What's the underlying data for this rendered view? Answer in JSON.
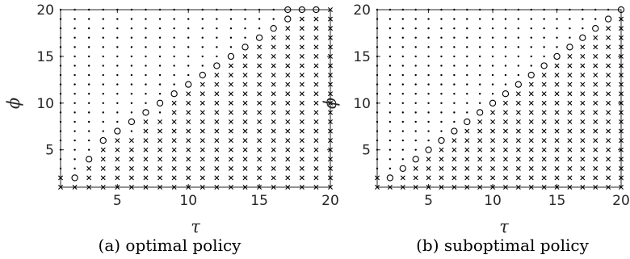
{
  "chart_data": [
    {
      "type": "scatter",
      "panel": "left",
      "caption": "(a) optimal policy",
      "xlabel": "τ",
      "ylabel": "ϕ",
      "xlim": [
        1,
        20
      ],
      "ylim": [
        1,
        20
      ],
      "xticks": [
        5,
        10,
        15,
        20
      ],
      "yticks": [
        5,
        10,
        15,
        20
      ],
      "grid": false,
      "marker_legend": {
        "dot": "•",
        "cross": "×",
        "circle": "○"
      },
      "rule": "for each column τ (1..20) and row ϕ (1..20): ϕ <= cross_upto[τ-1] → ×, ϕ in circles[τ-1] → ○, otherwise •",
      "cross_upto": [
        2,
        1,
        3,
        5,
        6,
        6,
        8,
        8,
        10,
        11,
        12,
        13,
        14,
        15,
        16,
        17,
        18,
        19,
        19,
        20
      ],
      "circles": [
        [],
        [
          2
        ],
        [
          4
        ],
        [
          6
        ],
        [
          5,
          7
        ],
        [
          8
        ],
        [
          9
        ],
        [
          10
        ],
        [
          11
        ],
        [
          12
        ],
        [
          13
        ],
        [
          14
        ],
        [
          15
        ],
        [
          16
        ],
        [
          17
        ],
        [
          18
        ],
        [
          19,
          20
        ],
        [
          20
        ],
        [
          20
        ],
        []
      ]
    },
    {
      "type": "scatter",
      "panel": "right",
      "caption": "(b) suboptimal policy",
      "xlabel": "τ",
      "ylabel": "ϕ",
      "xlim": [
        1,
        20
      ],
      "ylim": [
        1,
        20
      ],
      "xticks": [
        5,
        10,
        15,
        20
      ],
      "yticks": [
        5,
        10,
        15,
        20
      ],
      "grid": false,
      "marker_legend": {
        "dot": "•",
        "cross": "×",
        "circle": "○"
      },
      "rule": "for each column τ (1..20) and row ϕ (1..20): ϕ <= cross_upto[τ-1] → ×, ϕ in circles[τ-1] → ○, otherwise •",
      "cross_upto": [
        2,
        1,
        2,
        3,
        4,
        5,
        6,
        7,
        8,
        9,
        10,
        11,
        12,
        13,
        14,
        15,
        16,
        17,
        18,
        19
      ],
      "circles": [
        [],
        [
          2
        ],
        [
          3
        ],
        [
          4
        ],
        [
          5
        ],
        [
          6
        ],
        [
          7
        ],
        [
          8
        ],
        [
          9
        ],
        [
          10
        ],
        [
          11
        ],
        [
          12
        ],
        [
          13
        ],
        [
          14
        ],
        [
          15
        ],
        [
          16
        ],
        [
          17
        ],
        [
          18
        ],
        [
          19
        ],
        [
          20
        ]
      ]
    }
  ]
}
